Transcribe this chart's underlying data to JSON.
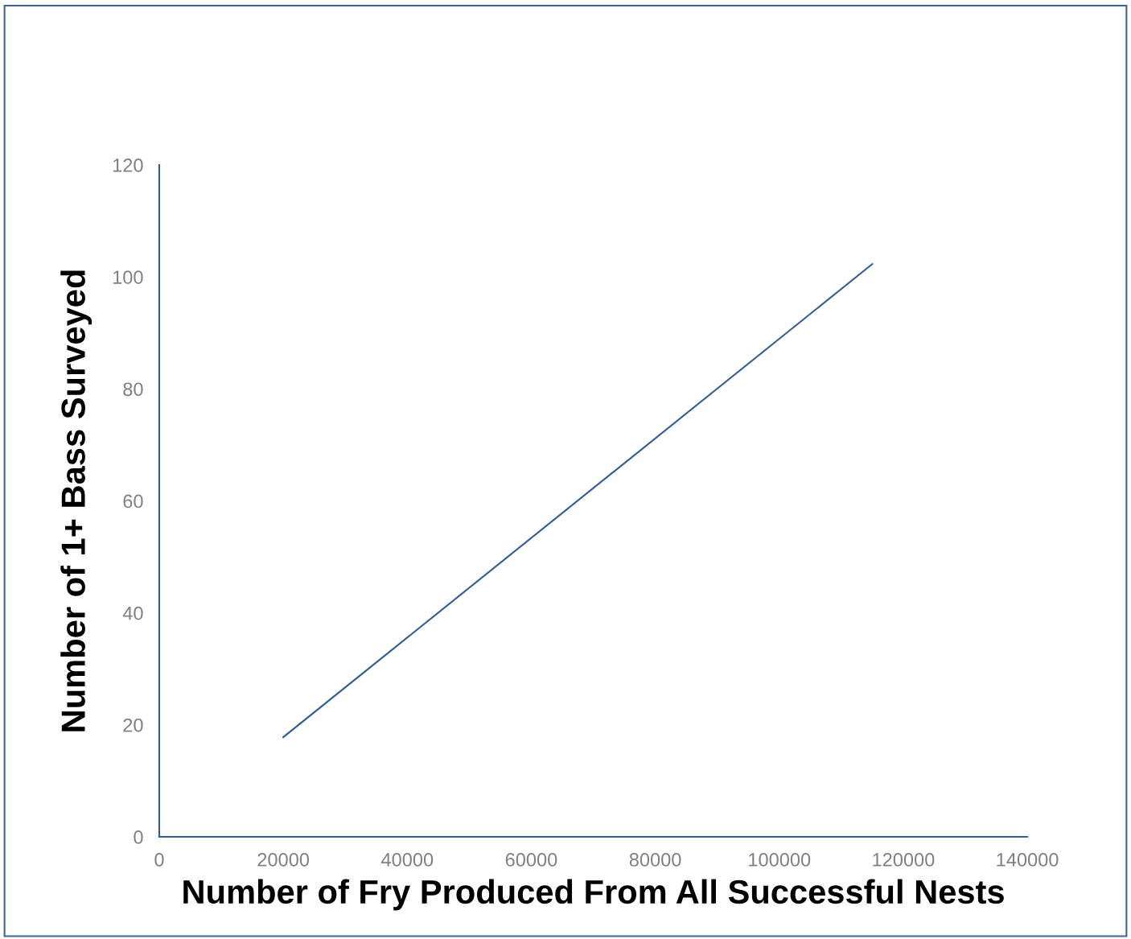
{
  "chart_data": {
    "type": "line",
    "xlabel": "Number of Fry Produced From All Successful Nests",
    "ylabel": "Number of 1+ Bass Surveyed",
    "x": [
      20000,
      115000
    ],
    "series": [
      {
        "color": "#2e5e94",
        "values": [
          17.8,
          102.3
        ]
      }
    ],
    "xlim": [
      0,
      140000
    ],
    "xticks": [
      0,
      20000,
      40000,
      60000,
      80000,
      100000,
      120000,
      140000
    ],
    "ylim": [
      0,
      120
    ],
    "yticks": [
      0,
      20,
      40,
      60,
      80,
      100,
      120
    ],
    "grid": false,
    "marker": "none",
    "line_style": "solid"
  }
}
